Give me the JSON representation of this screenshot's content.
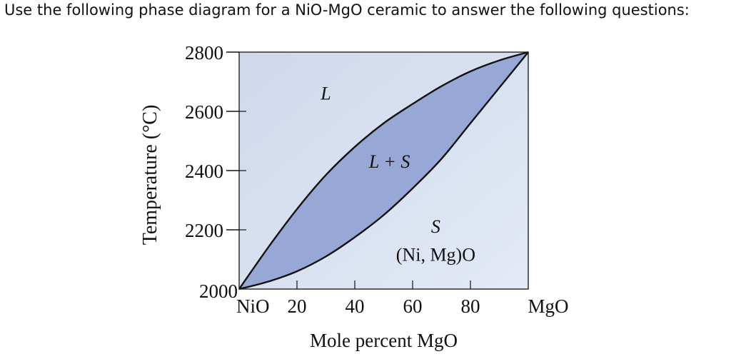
{
  "question": "Use the following phase diagram for a NiO-MgO ceramic to answer the following questions:",
  "chart_data": {
    "type": "line",
    "title": "",
    "xlabel": "Mole percent MgO",
    "ylabel": "Temperature (°C)",
    "xlim": [
      0,
      100
    ],
    "ylim": [
      2000,
      2800
    ],
    "x_ticks": [
      0,
      20,
      40,
      60,
      80,
      100
    ],
    "x_tick_labels": [
      "NiO",
      "20",
      "40",
      "60",
      "80",
      "MgO"
    ],
    "y_ticks": [
      2000,
      2200,
      2400,
      2600,
      2800
    ],
    "y_tick_labels": [
      "2000",
      "2200",
      "2400",
      "2600",
      "2800"
    ],
    "grid": false,
    "colors": {
      "liquid_region": "#d4deef",
      "two_phase_region": "#97a7d6",
      "solid_region": "#d4deef",
      "boundary": "#111111"
    },
    "series": [
      {
        "name": "",
        "x": [
          0,
          10,
          20,
          30,
          40,
          50,
          60,
          70,
          80,
          90,
          100
        ],
        "y": [
          2000,
          2140,
          2270,
          2385,
          2480,
          2560,
          2625,
          2685,
          2735,
          2772,
          2800
        ]
      },
      {
        "name": "",
        "x": [
          0,
          10,
          20,
          30,
          40,
          50,
          60,
          70,
          80,
          90,
          100
        ],
        "y": [
          2000,
          2025,
          2060,
          2110,
          2175,
          2250,
          2340,
          2440,
          2560,
          2680,
          2800
        ]
      }
    ],
    "region_labels": [
      {
        "text": "L",
        "x": 30,
        "y": 2640,
        "italic": true
      },
      {
        "text": "L + S",
        "x": 52,
        "y": 2410,
        "italic": true
      },
      {
        "text": "S",
        "x": 68,
        "y": 2190,
        "italic": true
      },
      {
        "text": "(Ni, Mg)O",
        "x": 68,
        "y": 2095,
        "italic": false
      }
    ]
  }
}
